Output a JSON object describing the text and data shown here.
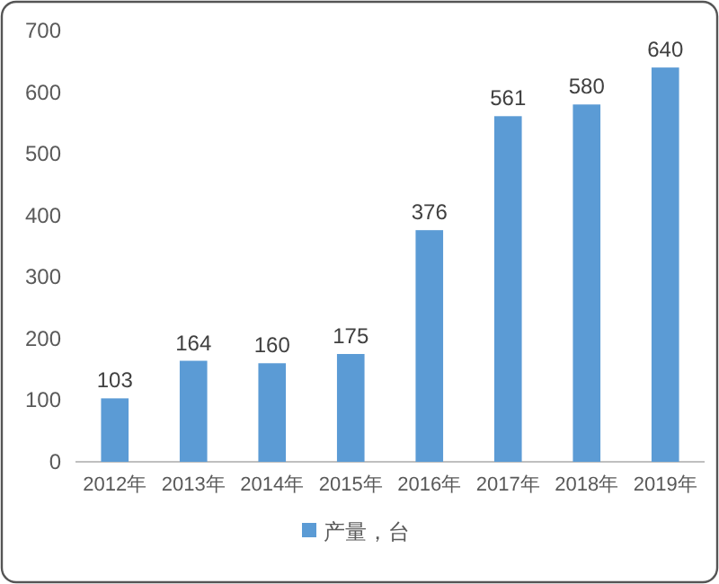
{
  "chart_data": {
    "type": "bar",
    "categories": [
      "2012年",
      "2013年",
      "2014年",
      "2015年",
      "2016年",
      "2017年",
      "2018年",
      "2019年"
    ],
    "series": [
      {
        "name": "产量，台",
        "color": "#5b9bd5",
        "values": [
          103,
          164,
          160,
          175,
          376,
          561,
          580,
          640
        ]
      }
    ],
    "ylim": [
      0,
      700
    ],
    "yticks": [
      0,
      100,
      200,
      300,
      400,
      500,
      600,
      700
    ],
    "data_labels": true,
    "grid": false,
    "legend": "bottom"
  }
}
